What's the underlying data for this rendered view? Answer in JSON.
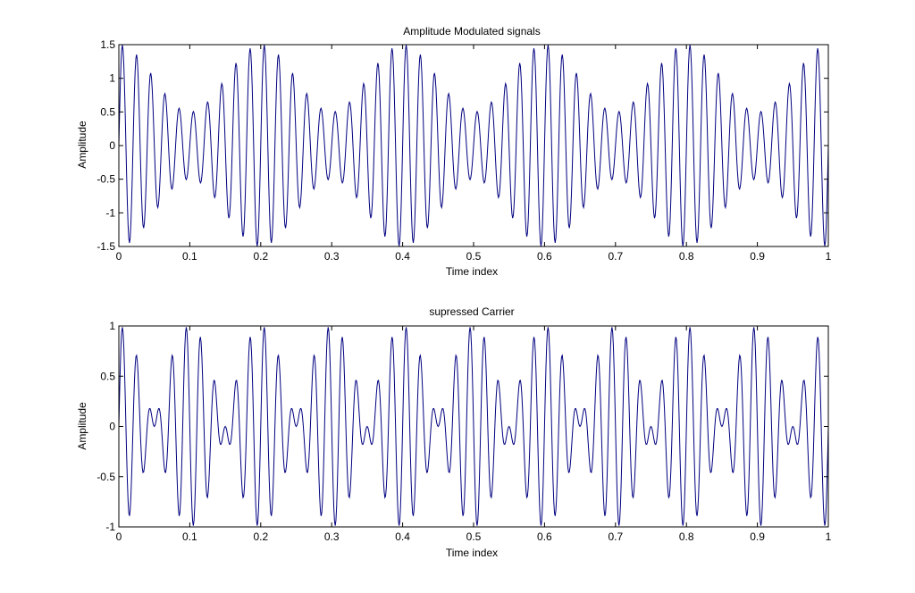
{
  "figure": {
    "background": "#ffffff",
    "line_color": "#000080",
    "axes_color": "#000000"
  },
  "chart_data": [
    {
      "type": "line",
      "title": "Amplitude Modulated signals",
      "xlabel": "Time index",
      "ylabel": "Amplitude",
      "xlim": [
        0,
        1
      ],
      "ylim": [
        -1.5,
        1.5
      ],
      "xticks": [
        "0",
        "0.1",
        "0.2",
        "0.3",
        "0.4",
        "0.5",
        "0.6",
        "0.7",
        "0.8",
        "0.9",
        "1"
      ],
      "yticks": [
        "-1.5",
        "-1",
        "-0.5",
        "0",
        "0.5",
        "1",
        "1.5"
      ],
      "grid": false,
      "series": [
        {
          "formula": "(1 + 0.5*cos(2*pi*5*t)) * sin(2*pi*50*t)",
          "carrier_frequency": 50,
          "message_frequency": 5,
          "modulation_index": 0.5,
          "t_start": 0,
          "t_end": 1,
          "samples": 1001
        }
      ]
    },
    {
      "type": "line",
      "title": "supressed Carrier",
      "xlabel": "Time index",
      "ylabel": "Amplitude",
      "xlim": [
        0,
        1
      ],
      "ylim": [
        -1,
        1
      ],
      "xticks": [
        "0",
        "0.1",
        "0.2",
        "0.3",
        "0.4",
        "0.5",
        "0.6",
        "0.7",
        "0.8",
        "0.9",
        "1"
      ],
      "yticks": [
        "-1",
        "-0.5",
        "0",
        "0.5",
        "1"
      ],
      "grid": false,
      "series": [
        {
          "formula": "sin(2*pi*50*t) * cos(2*pi*5*t)",
          "carrier_frequency": 50,
          "message_frequency": 5,
          "t_start": 0,
          "t_end": 1,
          "samples": 1001
        }
      ]
    }
  ]
}
